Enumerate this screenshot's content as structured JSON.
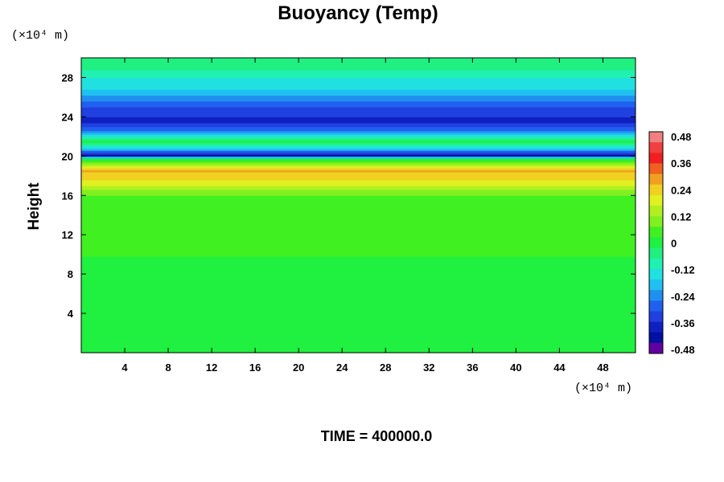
{
  "chart_data": {
    "type": "heatmap",
    "title": "Buoyancy (Temp)",
    "ylabel": "Height",
    "xlabel": "",
    "x_unit_label": "(×10⁴ m)",
    "y_unit_label": "(×10⁴ m)",
    "footer": "TIME = 400000.0",
    "xlim": [
      0,
      51
    ],
    "ylim": [
      0,
      30
    ],
    "x_ticks": [
      "4",
      "8",
      "12",
      "16",
      "20",
      "24",
      "28",
      "32",
      "36",
      "40",
      "44",
      "48"
    ],
    "y_ticks": [
      "4",
      "8",
      "12",
      "16",
      "20",
      "24",
      "28"
    ],
    "colorbar": {
      "min": -0.48,
      "max": 0.48,
      "labels": [
        "0.48",
        "0.36",
        "0.24",
        "0.12",
        "0",
        "-0.12",
        "-0.24",
        "-0.36",
        "-0.48"
      ],
      "colors": [
        "#f08080",
        "#f04040",
        "#f02020",
        "#f06020",
        "#f0a020",
        "#f0d020",
        "#e0f020",
        "#b0f020",
        "#80f020",
        "#40f020",
        "#20f040",
        "#20f080",
        "#20f0b0",
        "#20e0e0",
        "#20c0f0",
        "#2090f0",
        "#2060f0",
        "#2040e0",
        "#1020c0",
        "#0010a0",
        "#6000a0"
      ]
    },
    "profile": {
      "height": [
        0,
        9.5,
        10,
        16,
        17.5,
        18.5,
        19,
        19.8,
        20.1,
        20.7,
        21.5,
        22.5,
        23.5,
        25,
        27,
        28,
        29,
        30
      ],
      "value": [
        0.0,
        0.0,
        0.03,
        0.06,
        0.2,
        0.26,
        0.18,
        -0.05,
        -0.4,
        -0.2,
        0.02,
        -0.25,
        -0.36,
        -0.3,
        -0.15,
        -0.12,
        -0.05,
        -0.05
      ]
    },
    "grid": false,
    "legend": "none"
  }
}
